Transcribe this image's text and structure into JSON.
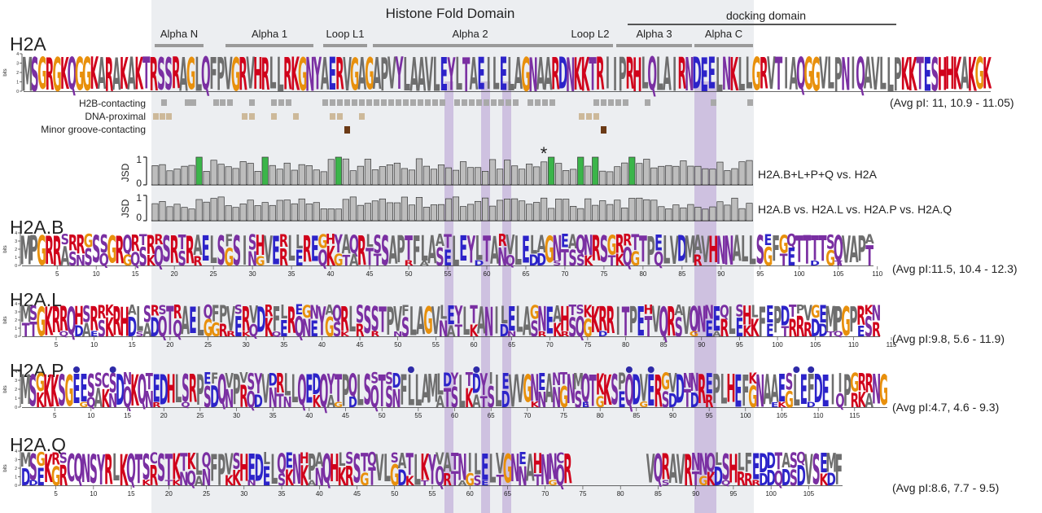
{
  "header": {
    "title": "Histone Fold Domain",
    "docking_title": "docking domain",
    "segments": [
      "Alpha N",
      "Alpha 1",
      "Loop L1",
      "Alpha 2",
      "Loop L2",
      "Alpha 3",
      "Alpha C"
    ]
  },
  "rows": {
    "labels": [
      "H2B-contacting",
      "DNA-proximal",
      "Minor groove-contacting"
    ],
    "colors": {
      "h2b": "#a9a9a9",
      "dna": "#cdb99a",
      "minor": "#6b3a16"
    }
  },
  "jsd": {
    "axis_label": "JSD",
    "tick_labels": [
      "1",
      "0"
    ],
    "comparison1": "H2A.B+L+P+Q vs. H2A",
    "comparison2": "H2A.B vs. H2A.L vs. H2A.P vs. H2A.Q",
    "star": "*",
    "bar_fill": "#bdbdbd",
    "highlight_fill": "#3bb54a"
  },
  "logos": [
    {
      "name": "H2A",
      "sequence": "MSGRGKQGGKARAKAKTRSSRAGLQFPVGRVHRLLRKGNYAERVGAGAPVYLAAVLEYLTAEILELAGNAARDNKKTRIIPRHLQLAIRNDEELNKLLGRVTIAQGGVLPNIQAVLLPKKTESHHKAKGK",
      "pi": "(Avg pI: 11, 10.9 - 11.05)",
      "axis": "bits",
      "ticks": []
    },
    {
      "name": "H2A.B",
      "sequence": "MPGRRSRRGSSGRQRTRRSRTRAELSFSISHVERLLREGHYAQRLSSAPTFLAATLEYLTARVLELAGNEAQNRSGRRTTPELVDMAVHNNALLSEFGQTTTTSQVAPA",
      "pi": "(Avg pI:11.5, 10.4 - 12.3)",
      "axis": "bits",
      "ticks": [
        "5",
        "10",
        "15",
        "20",
        "25",
        "30",
        "35",
        "40",
        "45",
        "50",
        "55",
        "60",
        "65",
        "70",
        "75",
        "80",
        "85",
        "90",
        "95",
        "100",
        "105",
        "110"
      ]
    },
    {
      "name": "H2A.L",
      "sequence": "MSGKRRQHSRRKRHALSRSTRAELQFPVSRVDRFLREGNYAQRLSSSTPVFLAGVLEYLTANILELAGNEAHTSKKRRITPEHVQRAVQNNEQLSHLFEPDTPVGEMPGPRKN",
      "pi": "(Avg pI:9.8, 5.6 - 11.9)",
      "axis": "bits",
      "ticks": [
        "5",
        "10",
        "15",
        "20",
        "25",
        "30",
        "35",
        "40",
        "45",
        "50",
        "55",
        "60",
        "65",
        "70",
        "75",
        "80",
        "85",
        "90",
        "95",
        "100",
        "105",
        "110",
        "115"
      ]
    },
    {
      "name": "H2A.P",
      "sequence": "MSGKKSGEESSCSDNKQTEDHLSRPEFQVPVSYVDRLLQEDQYTPQLSSTSDFLLAMLDYLTDYILEVVGNEANTNMQTKKSPQDVERGVDNNREPLHEFKNAAESLEFDEIIPGRRNG",
      "pi": "(Avg pI:4.7, 4.6 - 9.3)",
      "axis": "bits",
      "ticks": [
        "5",
        "10",
        "15",
        "20",
        "25",
        "30",
        "35",
        "40",
        "45",
        "50",
        "55",
        "60",
        "65",
        "70",
        "75",
        "80",
        "85",
        "90",
        "95",
        "100",
        "105",
        "110",
        "115"
      ]
    },
    {
      "name": "H2A.Q",
      "sequence": "MSGKRSCQNSYRLKQTSCSTKTKLQFPVSHEDLLQENHPAQHLSSTQVLSATLKYVATNILELVGNEAHNNCR__________VQRAVRNNQLSHLFEDDTASQVSEMF",
      "pi": "(Avg pI:8.6, 7.7 - 9.5)",
      "axis": "bits",
      "ticks": [
        "5",
        "10",
        "15",
        "20",
        "25",
        "30",
        "35",
        "40",
        "45",
        "50",
        "55",
        "60",
        "65",
        "70",
        "75",
        "80",
        "85",
        "90",
        "95",
        "100",
        "105"
      ]
    }
  ],
  "palette": {
    "basic": "#d0021b",
    "acidic": "#2c23c9",
    "polar": "#7a2fa2",
    "hydrophobic": "#6e6e6e",
    "glycine": "#e8900c",
    "shade": "#eceef1",
    "purple_band": "#c8b6dc"
  }
}
